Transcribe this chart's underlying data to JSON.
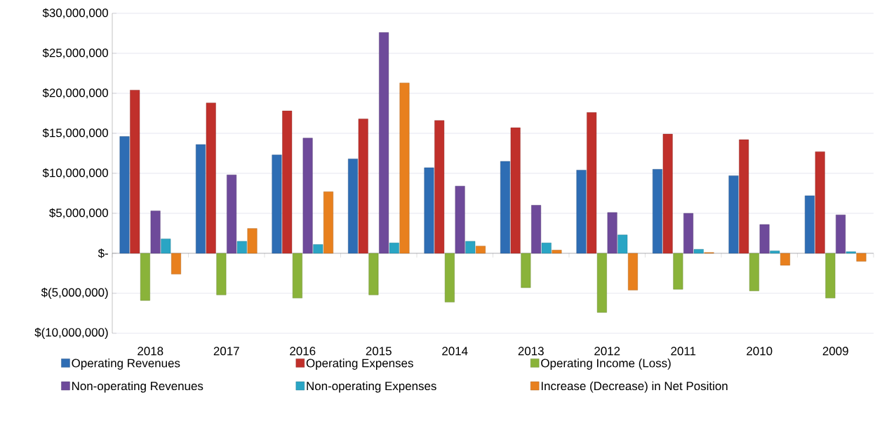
{
  "chart_data": {
    "type": "bar",
    "categories": [
      "2018",
      "2017",
      "2016",
      "2015",
      "2014",
      "2013",
      "2012",
      "2011",
      "2010",
      "2009"
    ],
    "series": [
      {
        "name": "Operating Revenues",
        "color": "#2e6db4",
        "values": [
          14600000,
          13600000,
          12300000,
          11800000,
          10700000,
          11500000,
          10400000,
          10500000,
          9700000,
          7200000
        ]
      },
      {
        "name": "Operating Expenses",
        "color": "#c0302b",
        "values": [
          20400000,
          18800000,
          17800000,
          16800000,
          16600000,
          15700000,
          17600000,
          14900000,
          14200000,
          12700000
        ]
      },
      {
        "name": "Operating Income (Loss)",
        "color": "#8ab33a",
        "values": [
          -5900000,
          -5200000,
          -5600000,
          -5200000,
          -6100000,
          -4300000,
          -7400000,
          -4500000,
          -4700000,
          -5600000
        ]
      },
      {
        "name": "Non-operating Revenues",
        "color": "#6e4a9a",
        "values": [
          5300000,
          9800000,
          14400000,
          27600000,
          8400000,
          6000000,
          5100000,
          5000000,
          3600000,
          4800000
        ]
      },
      {
        "name": "Non-operating Expenses",
        "color": "#2aa5c4",
        "values": [
          1800000,
          1500000,
          1100000,
          1300000,
          1500000,
          1300000,
          2300000,
          500000,
          300000,
          200000
        ]
      },
      {
        "name": "Increase (Decrease) in Net Position",
        "color": "#e8801e",
        "values": [
          -2600000,
          3100000,
          7700000,
          21300000,
          900000,
          400000,
          -4600000,
          100000,
          -1500000,
          -1000000
        ]
      }
    ],
    "ylim": [
      -10000000,
      30000000
    ],
    "yticks": [
      {
        "value": -10000000,
        "label": "$(10,000,000)"
      },
      {
        "value": -5000000,
        "label": "$(5,000,000)"
      },
      {
        "value": 0,
        "label": "$-"
      },
      {
        "value": 5000000,
        "label": "$5,000,000"
      },
      {
        "value": 10000000,
        "label": "$10,000,000"
      },
      {
        "value": 15000000,
        "label": "$15,000,000"
      },
      {
        "value": 20000000,
        "label": "$20,000,000"
      },
      {
        "value": 25000000,
        "label": "$25,000,000"
      },
      {
        "value": 30000000,
        "label": "$30,000,000"
      }
    ],
    "grid": "y",
    "legend": "bottom"
  }
}
